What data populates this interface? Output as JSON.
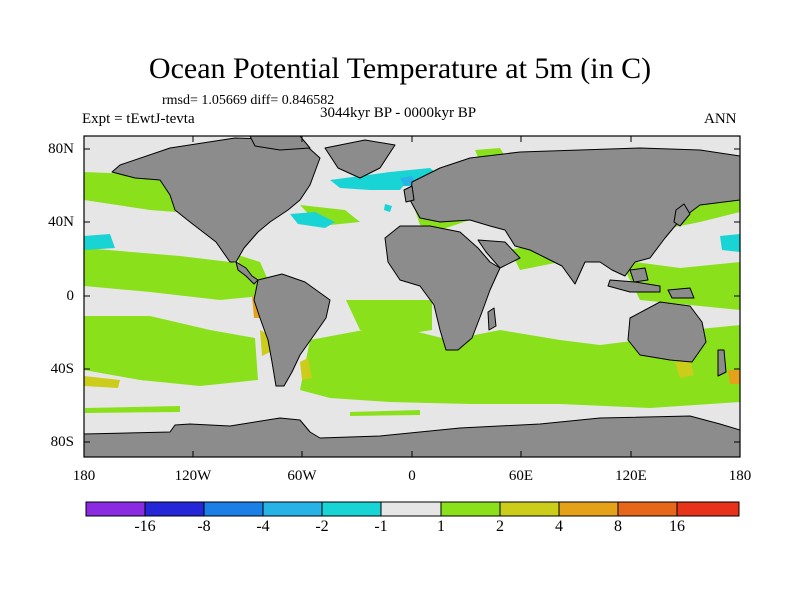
{
  "title": "Ocean Potential Temperature at 5m (in C)",
  "stats": "rmsd= 1.05669 diff= 0.846582",
  "period": "3044kyr BP - 0000kyr BP",
  "experiment": "Expt = tEwtJ-tevta",
  "season": "ANN",
  "y_axis_ticks": [
    "80N",
    "40N",
    "0",
    "40S",
    "80S"
  ],
  "x_axis_ticks": [
    "180",
    "120W",
    "60W",
    "0",
    "60E",
    "120E",
    "180"
  ],
  "colorbar": {
    "labels": [
      "-16",
      "-8",
      "-4",
      "-2",
      "-1",
      "1",
      "2",
      "4",
      "8",
      "16"
    ],
    "colors": [
      "#8a2be2",
      "#2626d9",
      "#1a7fe6",
      "#27b3e6",
      "#18d4d4",
      "#e6e6e6",
      "#8ae01a",
      "#cccc1a",
      "#e6a11a",
      "#e6661a",
      "#e6331a"
    ]
  },
  "map_colors": {
    "land": "#8c8c8c",
    "ocean_near_zero": "#e6e6e6",
    "warm_1_2": "#8ae01a",
    "warm_2_4": "#cccc1a",
    "warm_4_8": "#e6a11a",
    "cool_1_2": "#18d4d4",
    "cool_2_4": "#27b3e6"
  }
}
